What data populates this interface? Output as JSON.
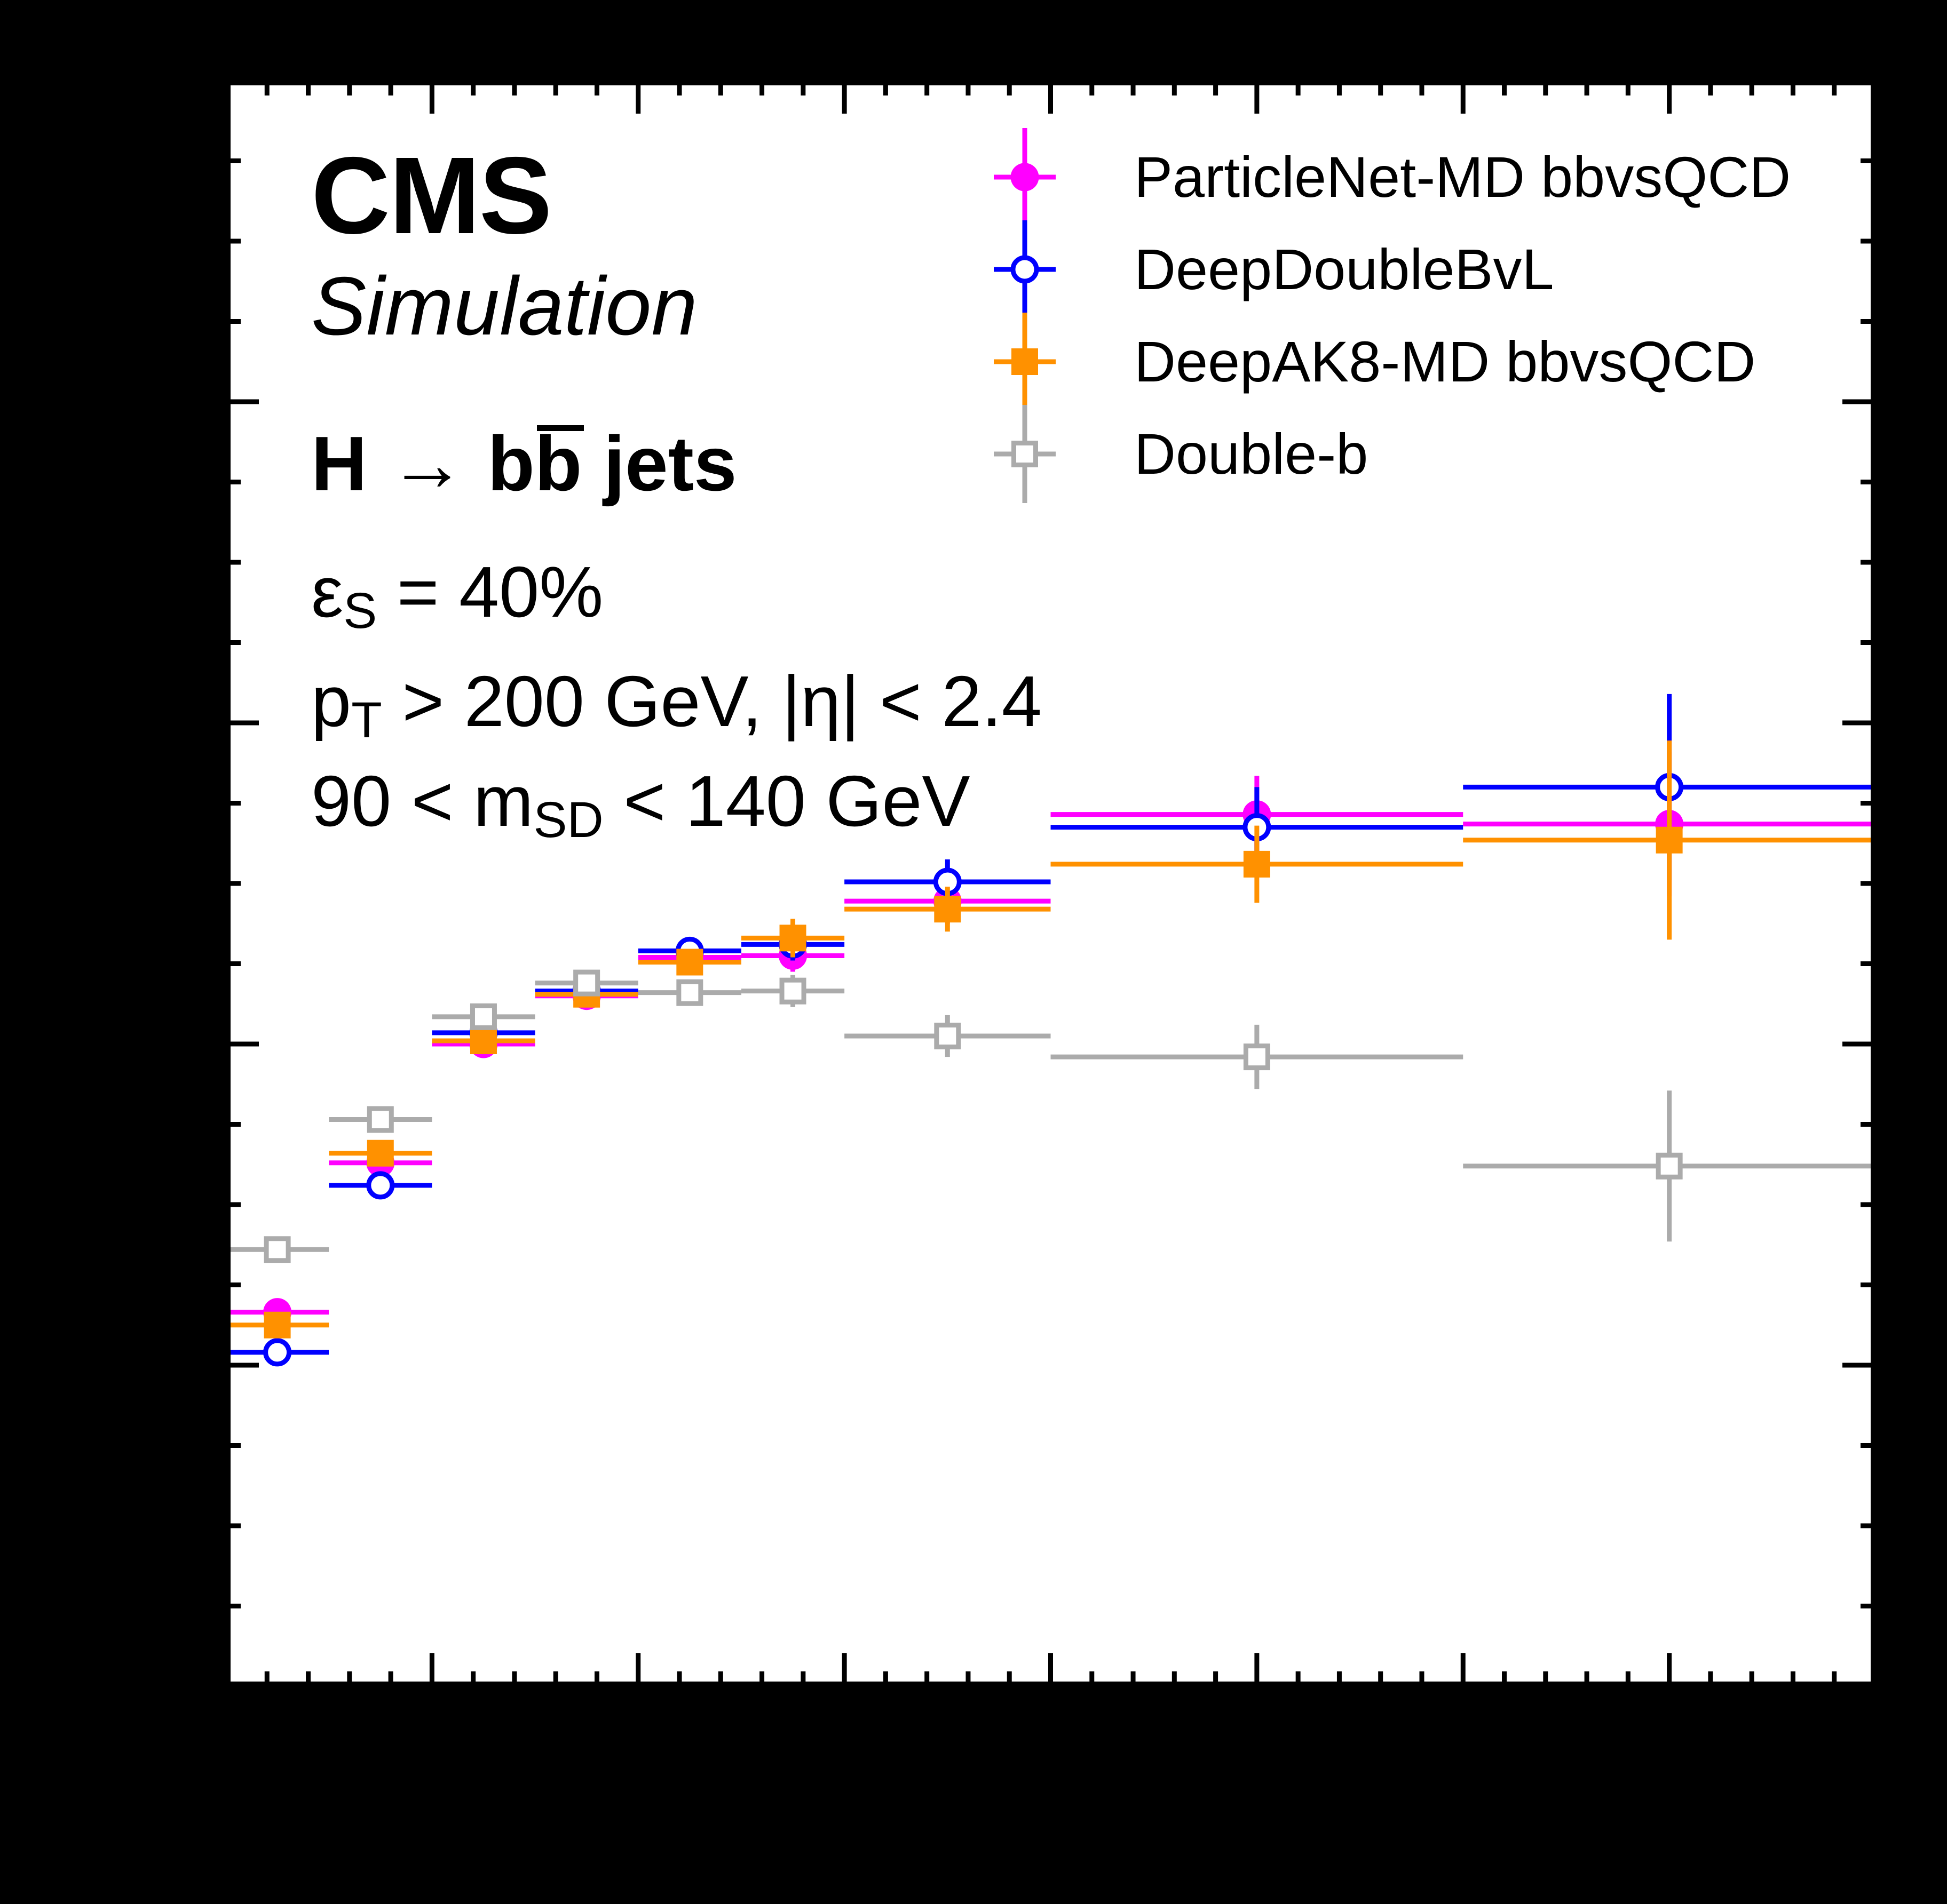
{
  "figure": {
    "background_color": "#000000",
    "plot_background_color": "#ffffff",
    "frame_color": "#000000"
  },
  "header": {
    "experiment": "CMS",
    "sublabel": "Simulation"
  },
  "process": {
    "h": "H",
    "arrow": " → ",
    "b1": "b",
    "bbar": "b",
    "suffix": " jets"
  },
  "selections": {
    "eff": {
      "symbol": "ε",
      "sub": "S",
      "rest": " = 40%"
    },
    "pt": {
      "symbol": "p",
      "sub": "T",
      "rest": " > 200 GeV, |η| < 2.4"
    },
    "msd": {
      "pre": "90 < m",
      "sub": "SD",
      "rest": " < 140 GeV"
    }
  },
  "legend": {
    "position": "top-right",
    "items": [
      {
        "label": "ParticleNet-MD bbvsQCD",
        "marker": "filled-circle",
        "color": "#ff00ff"
      },
      {
        "label": "DeepDoubleBvL",
        "marker": "open-circle",
        "color": "#0000ff"
      },
      {
        "label": "DeepAK8-MD bbvsQCD",
        "marker": "filled-square",
        "color": "#ff9100"
      },
      {
        "label": "Double-b",
        "marker": "open-square",
        "color": "#ababab"
      }
    ]
  },
  "chart_data": {
    "type": "scatter",
    "title": "",
    "xlabel": "",
    "ylabel": "",
    "xlim": [
      200,
      1000
    ],
    "ylim": [
      0,
      1
    ],
    "grid": false,
    "tick_labels_visible": false,
    "x_bin_edges": [
      200,
      250,
      300,
      350,
      400,
      450,
      500,
      600,
      800,
      1000
    ],
    "x_bin_centers": [
      225,
      275,
      325,
      375,
      425,
      475,
      550,
      700,
      900
    ],
    "x_major_ticks": [
      300,
      400,
      500,
      600,
      700,
      800,
      900
    ],
    "x_minor_step": 20,
    "y_major_ticks": [
      0.2,
      0.4,
      0.6,
      0.8
    ],
    "y_minor_step": 0.05,
    "legend_position": "top-right",
    "series": [
      {
        "name": "ParticleNet-MD bbvsQCD",
        "marker": "filled-circle",
        "color": "#ff00ff",
        "values": [
          0.233,
          0.326,
          0.4,
          0.43,
          0.454,
          0.455,
          0.489,
          0.543,
          0.537
        ],
        "errors": [
          0.006,
          0.006,
          0.006,
          0.006,
          0.008,
          0.01,
          0.014,
          0.024,
          0.045
        ]
      },
      {
        "name": "DeepDoubleBvL",
        "marker": "open-circle",
        "color": "#0000ff",
        "values": [
          0.208,
          0.312,
          0.407,
          0.433,
          0.458,
          0.462,
          0.501,
          0.535,
          0.56
        ],
        "errors": [
          0.006,
          0.006,
          0.006,
          0.006,
          0.008,
          0.01,
          0.014,
          0.025,
          0.058
        ]
      },
      {
        "name": "DeepAK8-MD bbvsQCD",
        "marker": "filled-square",
        "color": "#ff9100",
        "values": [
          0.225,
          0.332,
          0.402,
          0.431,
          0.451,
          0.466,
          0.484,
          0.512,
          0.527
        ],
        "errors": [
          0.006,
          0.006,
          0.006,
          0.006,
          0.008,
          0.012,
          0.014,
          0.024,
          0.062
        ]
      },
      {
        "name": "Double-b",
        "marker": "open-square",
        "color": "#ababab",
        "values": [
          0.272,
          0.353,
          0.417,
          0.438,
          0.432,
          0.433,
          0.405,
          0.392,
          0.324
        ],
        "errors": [
          0.008,
          0.008,
          0.008,
          0.008,
          0.008,
          0.01,
          0.013,
          0.02,
          0.047
        ]
      }
    ],
    "style": {
      "frame_line_width": 9,
      "error_bar_width": 9,
      "major_tick_len": 62,
      "minor_tick_len": 28,
      "circle_marker_diameter": 53,
      "square_marker_size": 50
    }
  }
}
